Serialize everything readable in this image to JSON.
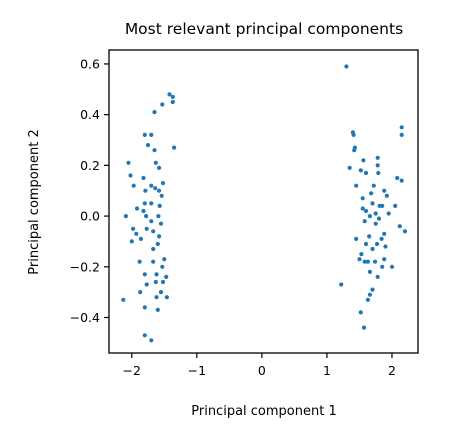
{
  "chart_data": {
    "type": "scatter",
    "title": "Most relevant principal components",
    "xlabel": "Principal component 1",
    "ylabel": "Principal component 2",
    "xlim": [
      -2.35,
      2.4
    ],
    "ylim": [
      -0.54,
      0.655
    ],
    "xticks": [
      -2,
      -1,
      0,
      1,
      2
    ],
    "yticks": [
      -0.4,
      -0.2,
      0.0,
      0.2,
      0.4,
      0.6
    ],
    "xtick_labels": [
      "−2",
      "−1",
      "0",
      "1",
      "2"
    ],
    "ytick_labels": [
      "−0.4",
      "−0.2",
      "0.0",
      "0.2",
      "0.4",
      "0.6"
    ],
    "grid": false,
    "marker_color": "#1f77b4",
    "series": [
      {
        "points": [
          [
            -1.42,
            0.48
          ],
          [
            -1.37,
            0.47
          ],
          [
            -1.37,
            0.45
          ],
          [
            -1.53,
            0.44
          ],
          [
            -1.65,
            0.41
          ],
          [
            -1.8,
            0.32
          ],
          [
            -1.7,
            0.32
          ],
          [
            -1.75,
            0.28
          ],
          [
            -1.35,
            0.27
          ],
          [
            -1.65,
            0.26
          ],
          [
            -2.05,
            0.21
          ],
          [
            -1.63,
            0.21
          ],
          [
            -1.58,
            0.19
          ],
          [
            -2.02,
            0.16
          ],
          [
            -1.82,
            0.15
          ],
          [
            -1.52,
            0.13
          ],
          [
            -1.97,
            0.12
          ],
          [
            -1.7,
            0.12
          ],
          [
            -1.64,
            0.11
          ],
          [
            -1.58,
            0.1
          ],
          [
            -1.79,
            0.1
          ],
          [
            -1.54,
            0.08
          ],
          [
            -1.8,
            0.05
          ],
          [
            -1.7,
            0.05
          ],
          [
            -1.57,
            0.04
          ],
          [
            -1.92,
            0.03
          ],
          [
            -1.82,
            0.02
          ],
          [
            -2.09,
            0.0
          ],
          [
            -1.78,
            0.0
          ],
          [
            -1.59,
            0.0
          ],
          [
            -1.7,
            -0.02
          ],
          [
            -1.55,
            -0.03
          ],
          [
            -1.98,
            -0.05
          ],
          [
            -1.77,
            -0.05
          ],
          [
            -1.67,
            -0.06
          ],
          [
            -1.93,
            -0.07
          ],
          [
            -1.58,
            -0.08
          ],
          [
            -1.86,
            -0.09
          ],
          [
            -2.0,
            -0.1
          ],
          [
            -1.6,
            -0.11
          ],
          [
            -1.67,
            -0.13
          ],
          [
            -1.5,
            -0.17
          ],
          [
            -1.88,
            -0.18
          ],
          [
            -1.67,
            -0.18
          ],
          [
            -1.53,
            -0.2
          ],
          [
            -1.8,
            -0.23
          ],
          [
            -1.62,
            -0.23
          ],
          [
            -1.47,
            -0.24
          ],
          [
            -1.52,
            -0.26
          ],
          [
            -1.63,
            -0.26
          ],
          [
            -1.77,
            -0.27
          ],
          [
            -1.55,
            -0.3
          ],
          [
            -1.87,
            -0.3
          ],
          [
            -1.46,
            -0.32
          ],
          [
            -1.62,
            -0.32
          ],
          [
            -2.13,
            -0.33
          ],
          [
            -1.8,
            -0.36
          ],
          [
            -1.6,
            -0.37
          ],
          [
            -1.8,
            -0.47
          ],
          [
            -1.7,
            -0.49
          ],
          [
            1.3,
            0.59
          ],
          [
            1.4,
            0.33
          ],
          [
            1.41,
            0.32
          ],
          [
            1.43,
            0.27
          ],
          [
            1.42,
            0.26
          ],
          [
            1.56,
            0.22
          ],
          [
            1.78,
            0.23
          ],
          [
            1.35,
            0.19
          ],
          [
            1.52,
            0.18
          ],
          [
            1.6,
            0.17
          ],
          [
            1.78,
            0.2
          ],
          [
            1.79,
            0.17
          ],
          [
            2.15,
            0.35
          ],
          [
            2.15,
            0.32
          ],
          [
            2.08,
            0.15
          ],
          [
            2.15,
            0.14
          ],
          [
            1.45,
            0.12
          ],
          [
            1.72,
            0.12
          ],
          [
            1.88,
            0.1
          ],
          [
            1.68,
            0.09
          ],
          [
            1.92,
            0.08
          ],
          [
            1.55,
            0.07
          ],
          [
            1.7,
            0.05
          ],
          [
            1.81,
            0.04
          ],
          [
            1.85,
            0.04
          ],
          [
            2.05,
            0.04
          ],
          [
            1.55,
            0.03
          ],
          [
            1.6,
            0.02
          ],
          [
            1.75,
            0.01
          ],
          [
            1.95,
            0.01
          ],
          [
            1.66,
            0.0
          ],
          [
            1.8,
            -0.01
          ],
          [
            1.58,
            -0.02
          ],
          [
            1.75,
            -0.03
          ],
          [
            2.12,
            -0.04
          ],
          [
            2.2,
            -0.06
          ],
          [
            1.88,
            -0.07
          ],
          [
            1.65,
            -0.08
          ],
          [
            1.84,
            -0.09
          ],
          [
            1.45,
            -0.09
          ],
          [
            1.6,
            -0.11
          ],
          [
            1.77,
            -0.11
          ],
          [
            1.9,
            -0.12
          ],
          [
            1.7,
            -0.13
          ],
          [
            1.53,
            -0.15
          ],
          [
            1.88,
            -0.17
          ],
          [
            1.5,
            -0.17
          ],
          [
            1.58,
            -0.18
          ],
          [
            1.63,
            -0.18
          ],
          [
            1.74,
            -0.18
          ],
          [
            1.85,
            -0.2
          ],
          [
            2.0,
            -0.2
          ],
          [
            1.66,
            -0.22
          ],
          [
            1.78,
            -0.24
          ],
          [
            1.22,
            -0.27
          ],
          [
            1.7,
            -0.29
          ],
          [
            1.66,
            -0.31
          ],
          [
            1.63,
            -0.33
          ],
          [
            1.52,
            -0.38
          ],
          [
            1.57,
            -0.44
          ]
        ]
      }
    ]
  }
}
